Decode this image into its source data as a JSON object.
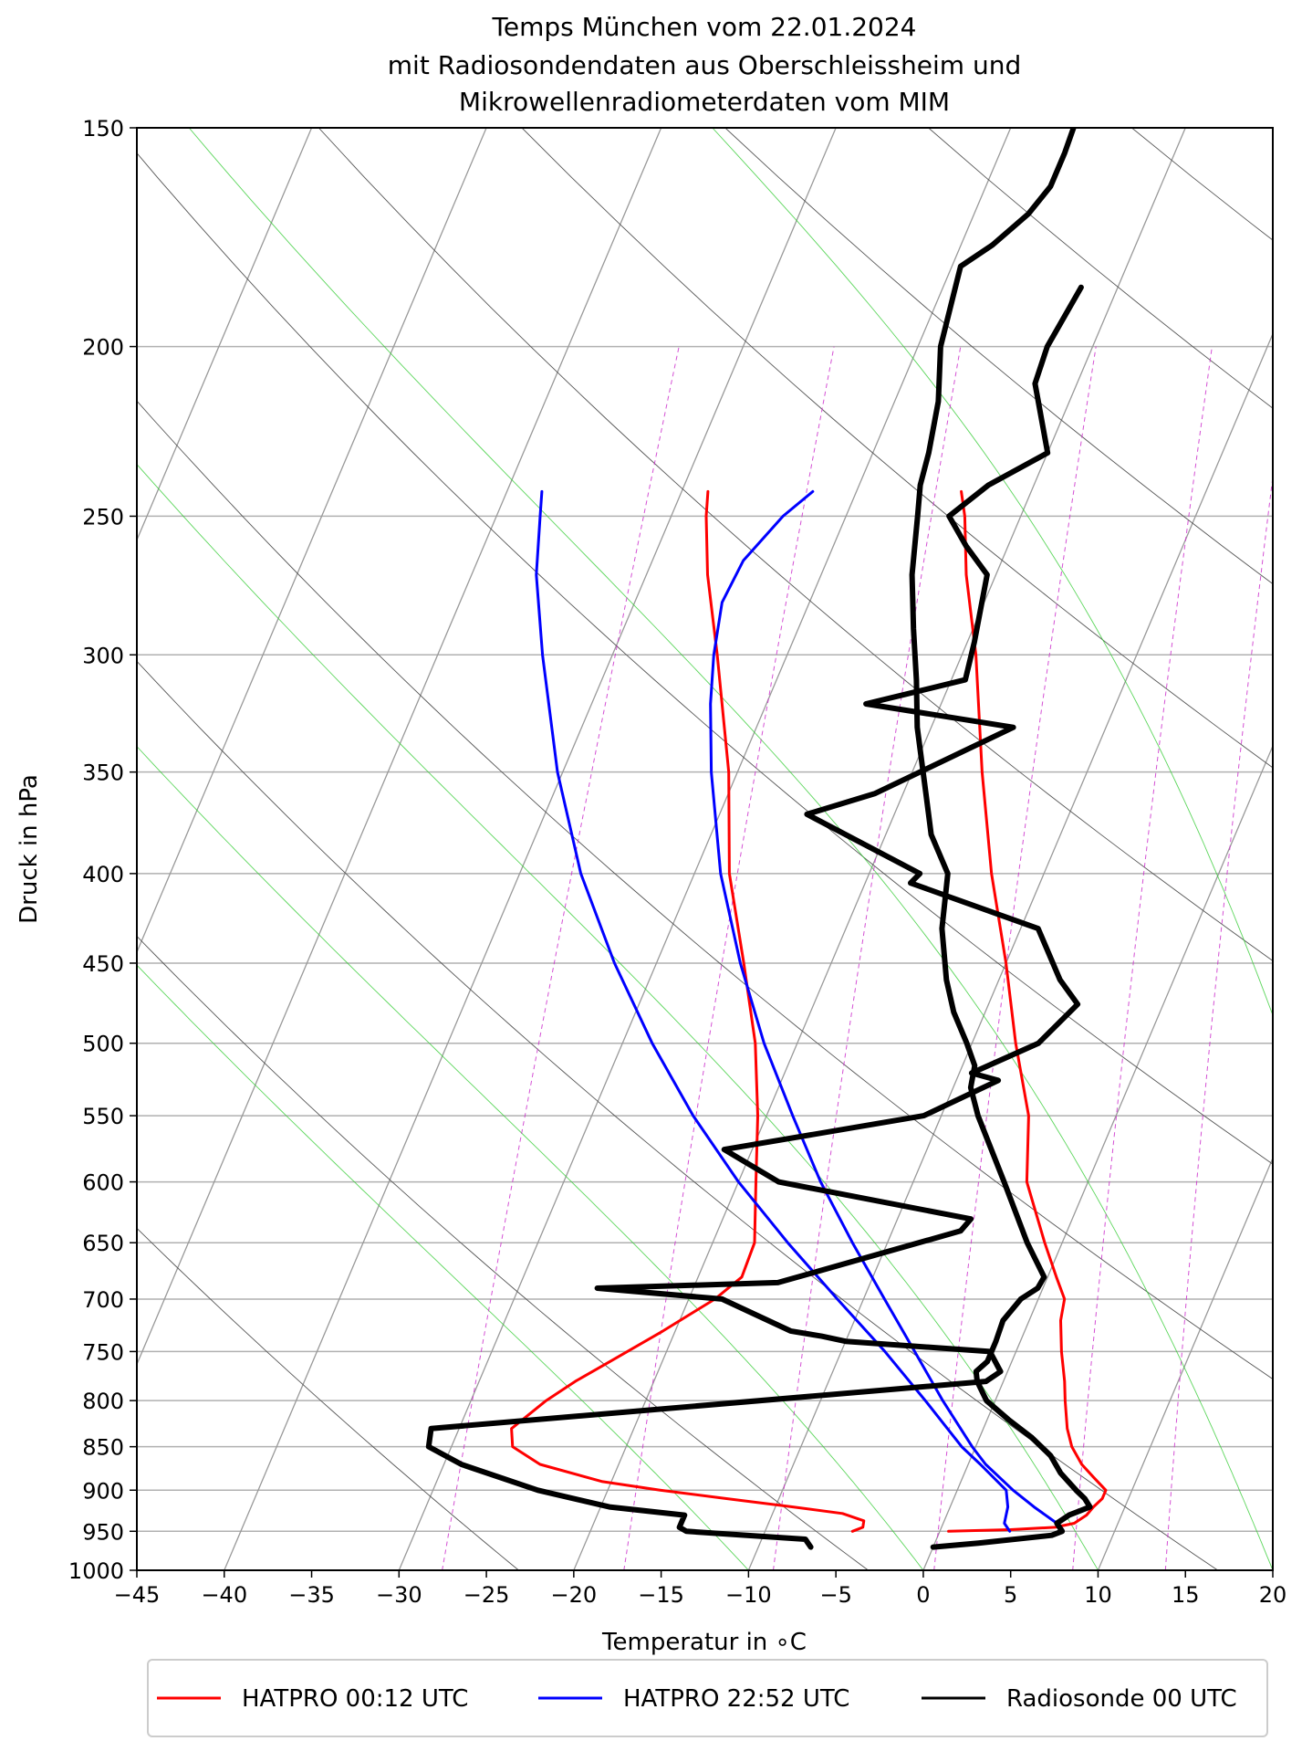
{
  "chart_data": {
    "type": "line",
    "title_lines": [
      "Temps München vom 22.01.2024",
      "mit Radiosondendaten aus Oberschleissheim und",
      "Mikrowellenradiometerdaten vom MIM"
    ],
    "xlabel": "Temperatur in $^\\circ$C",
    "xlabel_display": "Temperatur in ∘C",
    "ylabel": "Druck in hPa",
    "xlim": [
      -45,
      20
    ],
    "ylim": [
      1000,
      150
    ],
    "y_scale": "log",
    "skew_t": true,
    "grid": true,
    "x_ticks": [
      -45,
      -40,
      -35,
      -30,
      -25,
      -20,
      -15,
      -10,
      -5,
      0,
      5,
      10,
      15,
      20
    ],
    "x_tick_labels": [
      "−45",
      "−40",
      "−35",
      "−30",
      "−25",
      "−20",
      "−15",
      "−10",
      "−5",
      "0",
      "5",
      "10",
      "15",
      "20"
    ],
    "y_ticks": [
      1000,
      950,
      900,
      850,
      800,
      750,
      700,
      650,
      600,
      550,
      500,
      450,
      400,
      350,
      300,
      250,
      200,
      150
    ],
    "y_tick_labels": [
      "1000",
      "950",
      "900",
      "850",
      "800",
      "750",
      "700",
      "650",
      "600",
      "550",
      "500",
      "450",
      "400",
      "350",
      "300",
      "250",
      "200",
      "150"
    ],
    "legend_position": "bottom-center",
    "background_lines": {
      "skewed_isotherms_C": [
        -130,
        -120,
        -110,
        -100,
        -90,
        -80,
        -70,
        -60,
        -50,
        -40,
        -30,
        -20,
        -10,
        0,
        10,
        20,
        30
      ],
      "dry_adiabats_K": [
        250,
        270,
        290,
        310,
        330,
        350,
        370,
        390,
        410,
        430,
        450,
        470
      ],
      "moist_adiabats_C": [
        -10,
        0,
        10,
        20,
        30,
        40
      ],
      "mixing_ratio_lines": [
        0.0004,
        0.001,
        0.002,
        0.004,
        0.007,
        0.01,
        0.016,
        0.024,
        0.032
      ]
    },
    "colors": {
      "HATPRO 00:12 UTC": "#ff0000",
      "HATPRO 22:52 UTC": "#0000ff",
      "Radiosonde 00 UTC": "#000000",
      "isotherm": "#999999",
      "dry_adiabat": "#555555",
      "moist_adiabat": "#33cc33",
      "mixing_ratio": "#cc33cc",
      "grid": "#b0b0b0"
    },
    "series": [
      {
        "name": "HATPRO 00:12 UTC",
        "role": "temperature",
        "points": [
          [
            950,
            0.5
          ],
          [
            948,
            4
          ],
          [
            945,
            6.5
          ],
          [
            940,
            7.5
          ],
          [
            930,
            8
          ],
          [
            920,
            8.2
          ],
          [
            910,
            8.5
          ],
          [
            900,
            8.5
          ],
          [
            885,
            7.5
          ],
          [
            870,
            6.5
          ],
          [
            850,
            5.5
          ],
          [
            830,
            4.8
          ],
          [
            800,
            4
          ],
          [
            780,
            3.5
          ],
          [
            750,
            2.6
          ],
          [
            720,
            1.8
          ],
          [
            700,
            1.5
          ],
          [
            680,
            0.5
          ],
          [
            650,
            -1
          ],
          [
            600,
            -3.5
          ],
          [
            550,
            -5
          ],
          [
            500,
            -7.5
          ],
          [
            450,
            -10
          ],
          [
            400,
            -13
          ],
          [
            350,
            -16
          ],
          [
            300,
            -19.2
          ],
          [
            270,
            -21.7
          ],
          [
            250,
            -23.2
          ],
          [
            242,
            -24.0
          ]
        ]
      },
      {
        "name": "HATPRO 00:12 UTC",
        "role": "dewpoint",
        "points": [
          [
            950,
            -5
          ],
          [
            945,
            -4.5
          ],
          [
            937,
            -4.6
          ],
          [
            928,
            -6
          ],
          [
            920,
            -9
          ],
          [
            910,
            -13
          ],
          [
            900,
            -17
          ],
          [
            890,
            -20.5
          ],
          [
            870,
            -24.5
          ],
          [
            850,
            -26.5
          ],
          [
            830,
            -27
          ],
          [
            800,
            -25.7
          ],
          [
            780,
            -24.5
          ],
          [
            760,
            -23
          ],
          [
            730,
            -20.7
          ],
          [
            700,
            -18.5
          ],
          [
            680,
            -17.5
          ],
          [
            650,
            -17.6
          ],
          [
            600,
            -19
          ],
          [
            550,
            -20.5
          ],
          [
            500,
            -22.4
          ],
          [
            450,
            -25
          ],
          [
            400,
            -28
          ],
          [
            350,
            -30.5
          ],
          [
            300,
            -34
          ],
          [
            270,
            -36.5
          ],
          [
            250,
            -38
          ],
          [
            242,
            -38.5
          ]
        ]
      },
      {
        "name": "HATPRO 22:52 UTC",
        "role": "temperature",
        "points": [
          [
            948,
            7
          ],
          [
            940,
            6.5
          ],
          [
            920,
            4.8
          ],
          [
            900,
            3.2
          ],
          [
            870,
            1
          ],
          [
            850,
            -0.2
          ],
          [
            800,
            -3
          ],
          [
            750,
            -5.8
          ],
          [
            700,
            -8.8
          ],
          [
            650,
            -12
          ],
          [
            600,
            -15.3
          ],
          [
            550,
            -18.5
          ],
          [
            500,
            -21.9
          ],
          [
            450,
            -25.2
          ],
          [
            400,
            -28.5
          ],
          [
            350,
            -31.5
          ],
          [
            320,
            -33.2
          ],
          [
            300,
            -34.2
          ],
          [
            280,
            -35
          ],
          [
            265,
            -34.8
          ],
          [
            250,
            -33.6
          ],
          [
            242,
            -32.5
          ]
        ]
      },
      {
        "name": "HATPRO 22:52 UTC",
        "role": "dewpoint",
        "points": [
          [
            950,
            4
          ],
          [
            940,
            3.5
          ],
          [
            920,
            3.3
          ],
          [
            900,
            2.8
          ],
          [
            870,
            0.7
          ],
          [
            850,
            -0.8
          ],
          [
            800,
            -4
          ],
          [
            750,
            -7.5
          ],
          [
            700,
            -11.5
          ],
          [
            650,
            -15.7
          ],
          [
            600,
            -20
          ],
          [
            550,
            -24.2
          ],
          [
            500,
            -28.3
          ],
          [
            450,
            -32.4
          ],
          [
            400,
            -36.5
          ],
          [
            350,
            -40.3
          ],
          [
            300,
            -44
          ],
          [
            270,
            -46.3
          ],
          [
            250,
            -47.5
          ],
          [
            242,
            -48
          ]
        ]
      },
      {
        "name": "Radiosonde 00 UTC",
        "role": "temperature",
        "points": [
          [
            970,
            0
          ],
          [
            965,
            2.5
          ],
          [
            955,
            6.5
          ],
          [
            950,
            7
          ],
          [
            940,
            6.5
          ],
          [
            930,
            7
          ],
          [
            920,
            8
          ],
          [
            910,
            7.5
          ],
          [
            900,
            6.8
          ],
          [
            880,
            5.5
          ],
          [
            860,
            4.5
          ],
          [
            840,
            3
          ],
          [
            820,
            1.2
          ],
          [
            800,
            -0.5
          ],
          [
            780,
            -1.5
          ],
          [
            770,
            -1.8
          ],
          [
            760,
            -1.4
          ],
          [
            740,
            -1.4
          ],
          [
            720,
            -1.5
          ],
          [
            700,
            -1
          ],
          [
            690,
            -0.3
          ],
          [
            680,
            -0.2
          ],
          [
            650,
            -2
          ],
          [
            600,
            -4.8
          ],
          [
            550,
            -7.9
          ],
          [
            530,
            -9
          ],
          [
            515,
            -9.3
          ],
          [
            500,
            -10.3
          ],
          [
            480,
            -11.8
          ],
          [
            460,
            -13
          ],
          [
            430,
            -14.5
          ],
          [
            400,
            -15.5
          ],
          [
            380,
            -17.4
          ],
          [
            360,
            -18.7
          ],
          [
            330,
            -20.8
          ],
          [
            310,
            -22
          ],
          [
            290,
            -23.4
          ],
          [
            270,
            -24.8
          ],
          [
            250,
            -25.9
          ],
          [
            240,
            -26.5
          ],
          [
            230,
            -26.8
          ],
          [
            215,
            -27.5
          ],
          [
            200,
            -28.7
          ],
          [
            180,
            -29.5
          ],
          [
            175,
            -28.2
          ],
          [
            168,
            -26.9
          ],
          [
            162,
            -26.3
          ],
          [
            155,
            -26.3
          ],
          [
            150,
            -26.4
          ]
        ]
      },
      {
        "name": "Radiosonde 00 UTC",
        "role": "dewpoint",
        "points": [
          [
            970,
            -7
          ],
          [
            960,
            -7.5
          ],
          [
            950,
            -14.5
          ],
          [
            945,
            -15
          ],
          [
            930,
            -15
          ],
          [
            920,
            -19.5
          ],
          [
            900,
            -24
          ],
          [
            870,
            -29
          ],
          [
            850,
            -31.3
          ],
          [
            830,
            -31.6
          ],
          [
            780,
            -1
          ],
          [
            770,
            -0.4
          ],
          [
            750,
            -1.5
          ],
          [
            740,
            -10
          ],
          [
            735,
            -11.5
          ],
          [
            730,
            -13.4
          ],
          [
            700,
            -18.1
          ],
          [
            690,
            -25.5
          ],
          [
            685,
            -15.3
          ],
          [
            640,
            -6.1
          ],
          [
            630,
            -5.8
          ],
          [
            600,
            -17.7
          ],
          [
            575,
            -21.6
          ],
          [
            550,
            -11
          ],
          [
            525,
            -7.6
          ],
          [
            520,
            -9.3
          ],
          [
            500,
            -6.2
          ],
          [
            475,
            -4.9
          ],
          [
            460,
            -6.5
          ],
          [
            430,
            -9
          ],
          [
            405,
            -17.4
          ],
          [
            400,
            -17.1
          ],
          [
            370,
            -25
          ],
          [
            360,
            -21.6
          ],
          [
            330,
            -15.3
          ],
          [
            320,
            -24.3
          ],
          [
            310,
            -19.2
          ],
          [
            295,
            -19.6
          ],
          [
            270,
            -20.5
          ],
          [
            260,
            -22.4
          ],
          [
            250,
            -24.1
          ],
          [
            240,
            -22.6
          ],
          [
            230,
            -20
          ],
          [
            210,
            -22.4
          ],
          [
            200,
            -22.6
          ],
          [
            185,
            -22.1
          ]
        ]
      }
    ]
  },
  "legend": {
    "items": [
      {
        "label": "HATPRO 00:12 UTC",
        "color": "#ff0000"
      },
      {
        "label": "HATPRO 22:52 UTC",
        "color": "#0000ff"
      },
      {
        "label": "Radiosonde 00 UTC",
        "color": "#000000"
      }
    ]
  }
}
